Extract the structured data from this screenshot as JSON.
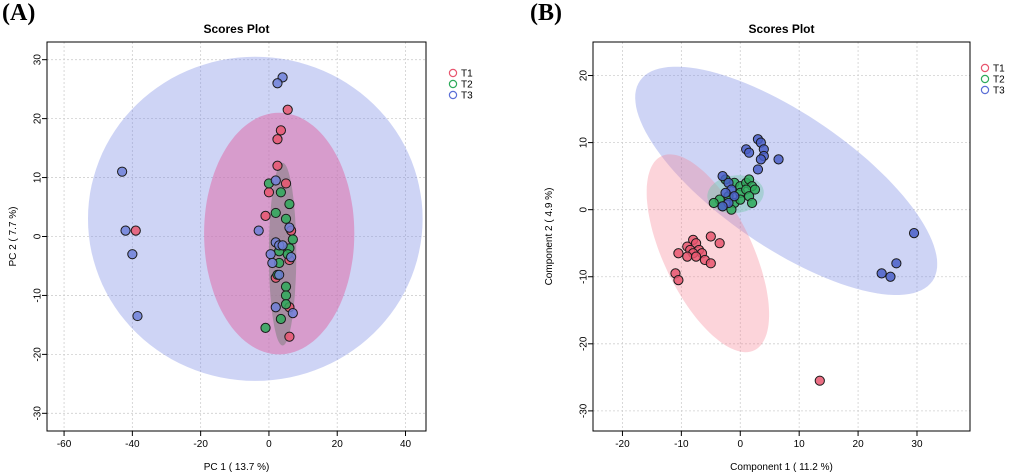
{
  "panels": [
    {
      "label": "(A)"
    },
    {
      "label": "(B)"
    }
  ],
  "colors": {
    "T1": "#e8566f",
    "T2": "#2eaa5a",
    "T3": "#5b6fd6"
  },
  "chart_data": [
    {
      "type": "scatter",
      "title": "Scores Plot",
      "xlabel": "PC 1 ( 13.7 %)",
      "ylabel": "PC 2 ( 7.7 %)",
      "xlim": [
        -65,
        46
      ],
      "ylim": [
        -33,
        33
      ],
      "xticks": [
        -60,
        -40,
        -20,
        0,
        20,
        40
      ],
      "yticks": [
        -30,
        -20,
        -10,
        0,
        10,
        20,
        30
      ],
      "grid": true,
      "legend": "top-right",
      "ellipses": [
        {
          "series": "T3",
          "cx": -4,
          "cy": 3,
          "rx": 49,
          "ry": 27.5,
          "angle": 0
        },
        {
          "series": "T1",
          "cx": 3,
          "cy": 0.5,
          "rx": 22,
          "ry": 20.5,
          "angle": 0
        },
        {
          "series": "T2",
          "cx": 4,
          "cy": -3,
          "rx": 4,
          "ry": 15.5,
          "angle": 0
        }
      ],
      "series": [
        {
          "name": "T1",
          "points": [
            [
              5.5,
              21.5
            ],
            [
              3.5,
              18
            ],
            [
              2.5,
              16.5
            ],
            [
              2.5,
              12
            ],
            [
              5,
              9
            ],
            [
              0,
              7.5
            ],
            [
              -1,
              3.5
            ],
            [
              6.5,
              1
            ],
            [
              6,
              -4
            ],
            [
              2,
              -7
            ],
            [
              6,
              -12
            ],
            [
              6,
              -17
            ],
            [
              -39,
              1
            ]
          ]
        },
        {
          "name": "T2",
          "points": [
            [
              0,
              9
            ],
            [
              3.5,
              7.5
            ],
            [
              6,
              5.5
            ],
            [
              2,
              4
            ],
            [
              5,
              3
            ],
            [
              7,
              -0.5
            ],
            [
              6,
              -2
            ],
            [
              5.5,
              -3
            ],
            [
              3,
              -4.5
            ],
            [
              2.5,
              -6.5
            ],
            [
              5,
              -8.5
            ],
            [
              5,
              -10
            ],
            [
              5,
              -11.5
            ],
            [
              3.5,
              -14
            ],
            [
              -1,
              -15.5
            ],
            [
              3,
              -2.5
            ]
          ]
        },
        {
          "name": "T3",
          "points": [
            [
              4,
              27
            ],
            [
              2.5,
              26
            ],
            [
              2,
              9.5
            ],
            [
              -3,
              1
            ],
            [
              2,
              -1
            ],
            [
              3,
              -1.5
            ],
            [
              4,
              -1.5
            ],
            [
              6,
              1.5
            ],
            [
              0.5,
              -3
            ],
            [
              1,
              -4.5
            ],
            [
              6.5,
              -3.5
            ],
            [
              3,
              -6.5
            ],
            [
              2,
              -12
            ],
            [
              7,
              -13
            ],
            [
              -43,
              11
            ],
            [
              -42,
              1
            ],
            [
              -40,
              -3
            ],
            [
              -38.5,
              -13.5
            ]
          ]
        }
      ]
    },
    {
      "type": "scatter",
      "title": "Scores Plot",
      "xlabel": "Component 1 ( 11.2 %)",
      "ylabel": "Component 2 ( 4.9 %)",
      "xlim": [
        -25,
        39
      ],
      "ylim": [
        -33,
        25
      ],
      "xticks": [
        -20,
        -10,
        0,
        10,
        20,
        30
      ],
      "yticks": [
        -30,
        -20,
        -10,
        0,
        10,
        20
      ],
      "grid": true,
      "legend": "top-right",
      "ellipses": [
        {
          "series": "T3",
          "cx": 7.8,
          "cy": 4.3,
          "rx": 29,
          "ry": 10.3,
          "angle": -30
        },
        {
          "series": "T1",
          "cx": -5.5,
          "cy": -6.5,
          "rx": 16.5,
          "ry": 7.3,
          "angle": -60
        },
        {
          "series": "T2",
          "cx": -0.8,
          "cy": 2.3,
          "rx": 4.8,
          "ry": 2.8,
          "angle": 5
        }
      ],
      "series": [
        {
          "name": "T1",
          "points": [
            [
              -8,
              -4.5
            ],
            [
              -7.5,
              -5
            ],
            [
              -5,
              -4
            ],
            [
              -3.5,
              -5
            ],
            [
              -9,
              -5.5
            ],
            [
              -8.5,
              -6
            ],
            [
              -7,
              -6
            ],
            [
              -6.5,
              -6.5
            ],
            [
              -8,
              -6.5
            ],
            [
              -9,
              -7
            ],
            [
              -7.5,
              -7
            ],
            [
              -6,
              -7.5
            ],
            [
              -5,
              -8
            ],
            [
              -10.5,
              -6.5
            ],
            [
              -11,
              -9.5
            ],
            [
              -10.5,
              -10.5
            ],
            [
              13.5,
              -25.5
            ]
          ]
        },
        {
          "name": "T2",
          "points": [
            [
              -2.5,
              4.5
            ],
            [
              -1,
              4
            ],
            [
              0,
              3.5
            ],
            [
              1,
              4
            ],
            [
              1.5,
              4.5
            ],
            [
              2,
              3.5
            ],
            [
              0,
              2.5
            ],
            [
              1,
              3
            ],
            [
              2.5,
              3
            ],
            [
              -2,
              2
            ],
            [
              -1,
              1
            ],
            [
              0,
              1.5
            ],
            [
              1.5,
              2
            ],
            [
              -3.5,
              1.5
            ],
            [
              -4.5,
              1
            ],
            [
              -3,
              0.5
            ],
            [
              -1.5,
              0
            ],
            [
              2,
              1
            ]
          ]
        },
        {
          "name": "T3",
          "points": [
            [
              3,
              10.5
            ],
            [
              3.5,
              10
            ],
            [
              4,
              9
            ],
            [
              1,
              9
            ],
            [
              1.5,
              8.5
            ],
            [
              4,
              8
            ],
            [
              3.5,
              7.5
            ],
            [
              6.5,
              7.5
            ],
            [
              3,
              6
            ],
            [
              -3,
              5
            ],
            [
              -2,
              4
            ],
            [
              -1.5,
              3
            ],
            [
              -2.5,
              2.5
            ],
            [
              -1,
              2
            ],
            [
              -2,
              1
            ],
            [
              -3,
              0.5
            ],
            [
              29.5,
              -3.5
            ],
            [
              26.5,
              -8
            ],
            [
              24,
              -9.5
            ],
            [
              25.5,
              -10
            ]
          ]
        }
      ]
    }
  ]
}
